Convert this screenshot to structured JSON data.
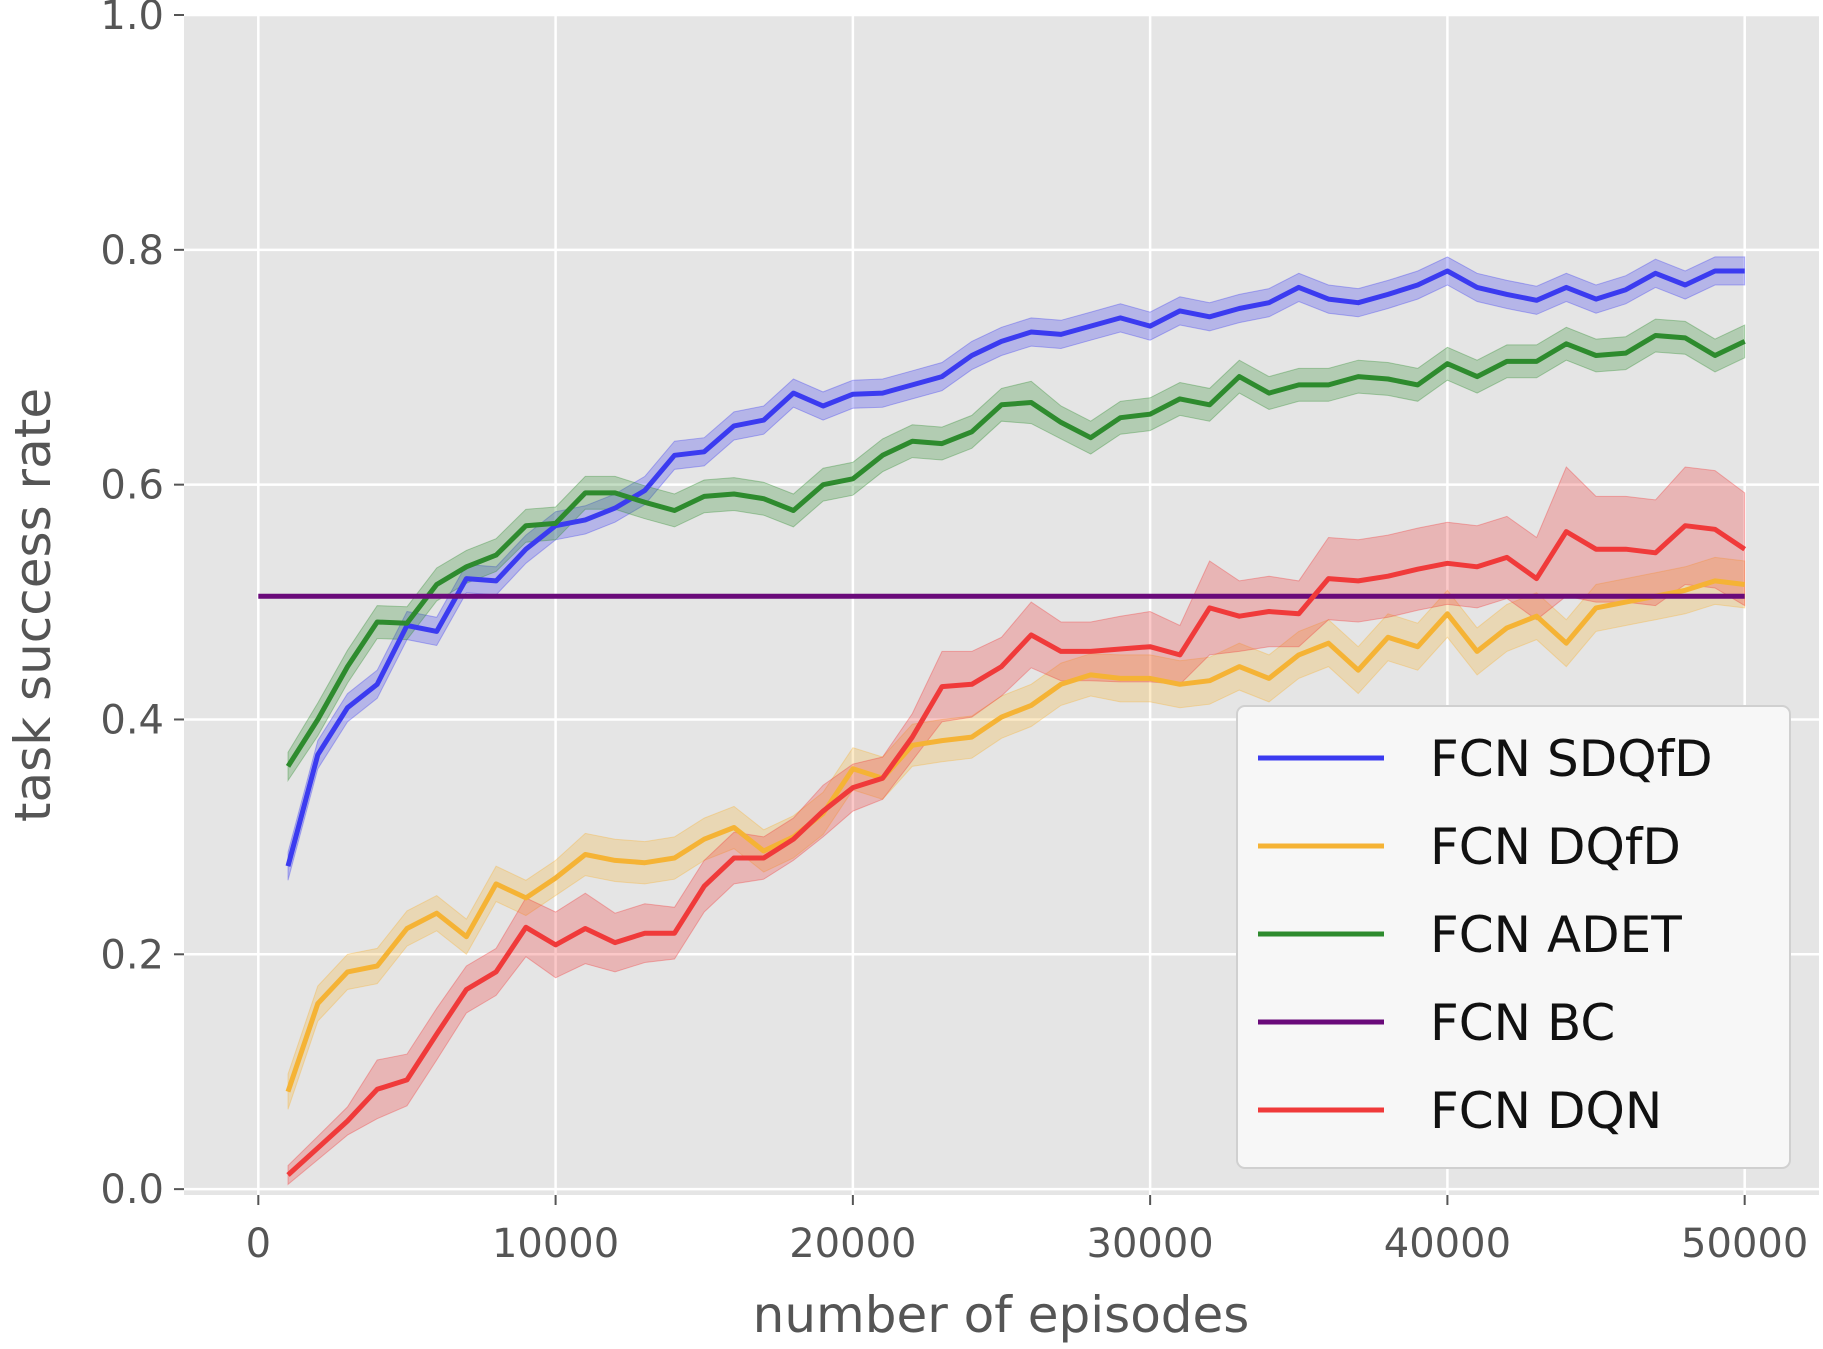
{
  "chart_data": {
    "type": "line",
    "title": "",
    "xlabel": "number of episodes",
    "ylabel": "task success rate",
    "xlim": [
      -2500,
      52500
    ],
    "ylim": [
      -0.005,
      1.0
    ],
    "xticks": [
      0,
      10000,
      20000,
      30000,
      40000,
      50000
    ],
    "yticks": [
      0.0,
      0.2,
      0.4,
      0.6,
      0.8,
      1.0
    ],
    "xtick_labels": [
      "0",
      "10000",
      "20000",
      "30000",
      "40000",
      "50000"
    ],
    "ytick_labels": [
      "0.0",
      "0.2",
      "0.4",
      "0.6",
      "0.8",
      "1.0"
    ],
    "grid": true,
    "legend_position": "lower-right",
    "x": [
      1000,
      2000,
      3000,
      4000,
      5000,
      6000,
      7000,
      8000,
      9000,
      10000,
      11000,
      12000,
      13000,
      14000,
      15000,
      16000,
      17000,
      18000,
      19000,
      20000,
      21000,
      22000,
      23000,
      24000,
      25000,
      26000,
      27000,
      28000,
      29000,
      30000,
      31000,
      32000,
      33000,
      34000,
      35000,
      36000,
      37000,
      38000,
      39000,
      40000,
      41000,
      42000,
      43000,
      44000,
      45000,
      46000,
      47000,
      48000,
      49000,
      50000
    ],
    "series": [
      {
        "name": "FCN SDQfD",
        "color": "#3b3bf0",
        "values": [
          0.275,
          0.37,
          0.41,
          0.43,
          0.48,
          0.475,
          0.52,
          0.518,
          0.545,
          0.565,
          0.57,
          0.58,
          0.595,
          0.625,
          0.628,
          0.65,
          0.655,
          0.678,
          0.667,
          0.677,
          0.678,
          0.685,
          0.692,
          0.71,
          0.722,
          0.73,
          0.728,
          0.735,
          0.742,
          0.735,
          0.748,
          0.743,
          0.75,
          0.755,
          0.768,
          0.758,
          0.755,
          0.762,
          0.77,
          0.782,
          0.768,
          0.762,
          0.757,
          0.768,
          0.758,
          0.766,
          0.78,
          0.77,
          0.782,
          0.782
        ],
        "band": [
          0.012,
          0.012,
          0.012,
          0.012,
          0.012,
          0.012,
          0.012,
          0.012,
          0.012,
          0.012,
          0.012,
          0.012,
          0.012,
          0.012,
          0.012,
          0.012,
          0.012,
          0.012,
          0.012,
          0.012,
          0.012,
          0.012,
          0.012,
          0.012,
          0.012,
          0.012,
          0.012,
          0.012,
          0.012,
          0.012,
          0.012,
          0.012,
          0.012,
          0.012,
          0.012,
          0.012,
          0.012,
          0.012,
          0.012,
          0.012,
          0.012,
          0.012,
          0.012,
          0.012,
          0.012,
          0.012,
          0.012,
          0.012,
          0.012,
          0.012
        ]
      },
      {
        "name": "FCN DQfD",
        "color": "#f5b335",
        "values": [
          0.083,
          0.158,
          0.185,
          0.19,
          0.222,
          0.235,
          0.215,
          0.26,
          0.248,
          0.265,
          0.285,
          0.28,
          0.278,
          0.282,
          0.298,
          0.308,
          0.288,
          0.3,
          0.32,
          0.358,
          0.35,
          0.378,
          0.382,
          0.385,
          0.402,
          0.412,
          0.43,
          0.438,
          0.435,
          0.435,
          0.43,
          0.433,
          0.445,
          0.435,
          0.455,
          0.465,
          0.442,
          0.47,
          0.462,
          0.49,
          0.458,
          0.478,
          0.488,
          0.465,
          0.495,
          0.5,
          0.505,
          0.51,
          0.518,
          0.515
        ],
        "band": [
          0.015,
          0.015,
          0.015,
          0.015,
          0.015,
          0.015,
          0.015,
          0.015,
          0.015,
          0.015,
          0.018,
          0.018,
          0.018,
          0.018,
          0.018,
          0.018,
          0.018,
          0.018,
          0.018,
          0.018,
          0.018,
          0.018,
          0.018,
          0.018,
          0.018,
          0.018,
          0.018,
          0.018,
          0.02,
          0.02,
          0.02,
          0.02,
          0.02,
          0.02,
          0.02,
          0.02,
          0.02,
          0.02,
          0.02,
          0.02,
          0.02,
          0.02,
          0.02,
          0.02,
          0.02,
          0.02,
          0.02,
          0.02,
          0.02,
          0.02
        ]
      },
      {
        "name": "FCN ADET",
        "color": "#2e8b2e",
        "values": [
          0.36,
          0.4,
          0.445,
          0.483,
          0.482,
          0.515,
          0.53,
          0.54,
          0.565,
          0.567,
          0.593,
          0.593,
          0.585,
          0.578,
          0.59,
          0.592,
          0.588,
          0.578,
          0.6,
          0.605,
          0.625,
          0.637,
          0.635,
          0.645,
          0.668,
          0.67,
          0.653,
          0.64,
          0.657,
          0.66,
          0.673,
          0.668,
          0.692,
          0.678,
          0.685,
          0.685,
          0.692,
          0.69,
          0.685,
          0.703,
          0.692,
          0.705,
          0.705,
          0.72,
          0.71,
          0.712,
          0.727,
          0.725,
          0.71,
          0.722
        ],
        "band": [
          0.012,
          0.014,
          0.014,
          0.014,
          0.014,
          0.014,
          0.014,
          0.014,
          0.014,
          0.014,
          0.014,
          0.014,
          0.014,
          0.014,
          0.014,
          0.014,
          0.014,
          0.014,
          0.014,
          0.014,
          0.014,
          0.014,
          0.014,
          0.014,
          0.014,
          0.018,
          0.014,
          0.014,
          0.014,
          0.014,
          0.014,
          0.014,
          0.014,
          0.014,
          0.014,
          0.014,
          0.014,
          0.014,
          0.014,
          0.014,
          0.014,
          0.014,
          0.014,
          0.014,
          0.014,
          0.014,
          0.014,
          0.014,
          0.014,
          0.014
        ]
      },
      {
        "name": "FCN BC",
        "color": "#6a0a7a",
        "x": [
          0,
          50000
        ],
        "values": [
          0.505,
          0.505
        ],
        "band": [
          0,
          0
        ]
      },
      {
        "name": "FCN DQN",
        "color": "#f03a3a",
        "values": [
          0.012,
          0.035,
          0.058,
          0.085,
          0.093,
          0.132,
          0.17,
          0.185,
          0.223,
          0.208,
          0.222,
          0.21,
          0.218,
          0.218,
          0.258,
          0.282,
          0.282,
          0.298,
          0.322,
          0.342,
          0.35,
          0.385,
          0.428,
          0.43,
          0.445,
          0.472,
          0.458,
          0.458,
          0.46,
          0.462,
          0.455,
          0.495,
          0.488,
          0.492,
          0.49,
          0.52,
          0.518,
          0.522,
          0.528,
          0.533,
          0.53,
          0.538,
          0.52,
          0.56,
          0.545,
          0.545,
          0.542,
          0.565,
          0.562,
          0.545
        ],
        "band": [
          0.008,
          0.01,
          0.012,
          0.025,
          0.022,
          0.022,
          0.02,
          0.02,
          0.025,
          0.028,
          0.03,
          0.025,
          0.025,
          0.022,
          0.022,
          0.022,
          0.018,
          0.018,
          0.022,
          0.02,
          0.018,
          0.02,
          0.03,
          0.028,
          0.025,
          0.028,
          0.025,
          0.025,
          0.028,
          0.03,
          0.025,
          0.04,
          0.03,
          0.03,
          0.028,
          0.035,
          0.035,
          0.035,
          0.035,
          0.035,
          0.035,
          0.035,
          0.035,
          0.055,
          0.045,
          0.045,
          0.045,
          0.05,
          0.05,
          0.048
        ]
      }
    ]
  }
}
